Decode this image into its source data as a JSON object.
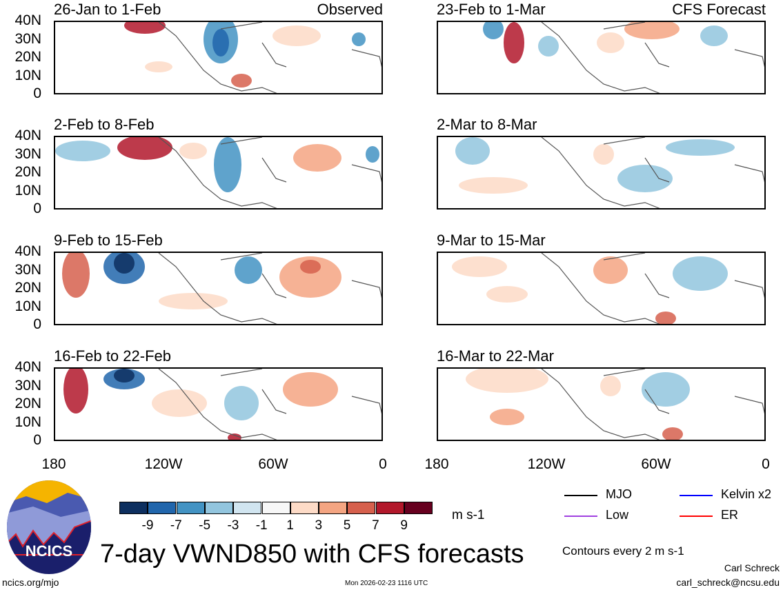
{
  "chart_data": {
    "type": "heatmap",
    "title": "7-day VWND850 with CFS forecasts",
    "variable": "850 hPa meridional wind anomaly",
    "units": "m s-1",
    "x_ticks": [
      "180",
      "120W",
      "60W",
      "0"
    ],
    "y_ticks": [
      "40N",
      "30N",
      "20N",
      "10N",
      "0"
    ],
    "xlim": [
      "180",
      "0"
    ],
    "ylim": [
      "0",
      "40N"
    ],
    "colorbar": {
      "levels": [
        "-9",
        "-7",
        "-5",
        "-3",
        "-1",
        "1",
        "3",
        "5",
        "7",
        "9"
      ],
      "colors": [
        "#0d2f5f",
        "#2166ac",
        "#4393c3",
        "#92c5de",
        "#d1e5f0",
        "#f7f7f7",
        "#fddbc7",
        "#f4a582",
        "#d6604d",
        "#b2182b",
        "#67001f"
      ]
    },
    "panels": [
      {
        "title": "26-Jan to 1-Feb",
        "label": "Observed"
      },
      {
        "title": "2-Feb to 8-Feb",
        "label": ""
      },
      {
        "title": "9-Feb to 15-Feb",
        "label": ""
      },
      {
        "title": "16-Feb to 22-Feb",
        "label": ""
      },
      {
        "title": "23-Feb to 1-Mar",
        "label": "CFS Forecast"
      },
      {
        "title": "2-Mar to 8-Mar",
        "label": ""
      },
      {
        "title": "9-Mar to 15-Mar",
        "label": ""
      },
      {
        "title": "16-Mar to 22-Mar",
        "label": ""
      }
    ],
    "legend": [
      {
        "name": "MJO",
        "color": "#000000"
      },
      {
        "name": "Kelvin x2",
        "color": "#0000ff"
      },
      {
        "name": "Low",
        "color": "#a040e0"
      },
      {
        "name": "ER",
        "color": "#ff0000"
      }
    ],
    "contour_note": "Contours every 2 m s-1"
  },
  "logo_text": "NCICS",
  "footer": {
    "site": "ncics.org/mjo",
    "timestamp": "Mon 2026-02-23 1116 UTC",
    "author": "Carl Schreck",
    "email": "carl_schreck@ncsu.edu"
  }
}
